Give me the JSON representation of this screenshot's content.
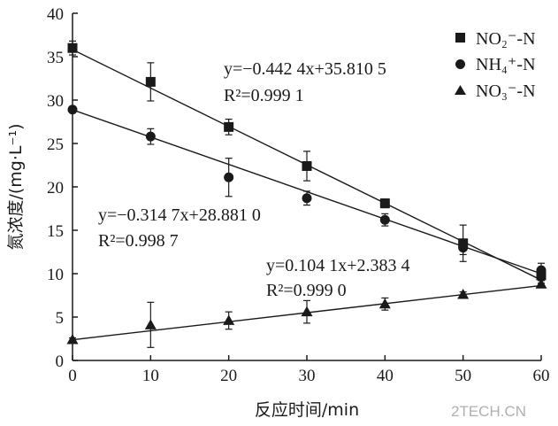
{
  "chart_data": {
    "type": "scatter",
    "xlabel": "反应时间/min",
    "ylabel": "氮浓度/(mg·L⁻¹)",
    "xlim": [
      0,
      60
    ],
    "ylim": [
      0,
      40
    ],
    "xticks": [
      0,
      10,
      20,
      30,
      40,
      50,
      60
    ],
    "yticks": [
      0,
      5,
      10,
      15,
      20,
      25,
      30,
      35,
      40
    ],
    "grid": false,
    "legend_position": "top-right",
    "series": [
      {
        "name": "NO₂⁻-N",
        "marker": "square",
        "x": [
          0,
          10,
          20,
          30,
          40,
          50,
          60
        ],
        "y": [
          36.0,
          32.1,
          26.9,
          22.4,
          18.1,
          13.5,
          9.8
        ],
        "err": [
          0.8,
          2.2,
          0.9,
          1.7,
          0.5,
          2.1,
          0.9
        ],
        "fit": {
          "slope": -0.4424,
          "intercept": 35.8105
        },
        "equation": "y=−0.442 4x+35.810 5",
        "r2": "R²=0.999 1"
      },
      {
        "name": "NH₄⁺-N",
        "marker": "circle",
        "x": [
          0,
          10,
          20,
          30,
          40,
          50,
          60
        ],
        "y": [
          28.9,
          25.8,
          21.1,
          18.7,
          16.2,
          13.0,
          10.4
        ],
        "err": [
          0.3,
          0.9,
          2.2,
          0.8,
          0.7,
          0.8,
          0.8
        ],
        "fit": {
          "slope": -0.3147,
          "intercept": 28.881
        },
        "equation": "y=−0.314 7x+28.881 0",
        "r2": "R²=0.998 7"
      },
      {
        "name": "NO₃⁻-N",
        "marker": "triangle",
        "x": [
          0,
          10,
          20,
          30,
          40,
          50,
          60
        ],
        "y": [
          2.4,
          4.1,
          4.6,
          5.6,
          6.5,
          7.6,
          8.8
        ],
        "err": [
          0.2,
          2.6,
          1.0,
          1.3,
          0.7,
          0.3,
          0.4
        ],
        "fit": {
          "slope": 0.1041,
          "intercept": 2.3834
        },
        "equation": "y=0.104 1x+2.383 4",
        "r2": "R²=0.999 0"
      }
    ]
  },
  "colors": {
    "ink": "#1a1a1a",
    "watermark": "#b0b0b0"
  },
  "watermark": "2TECH.CN"
}
